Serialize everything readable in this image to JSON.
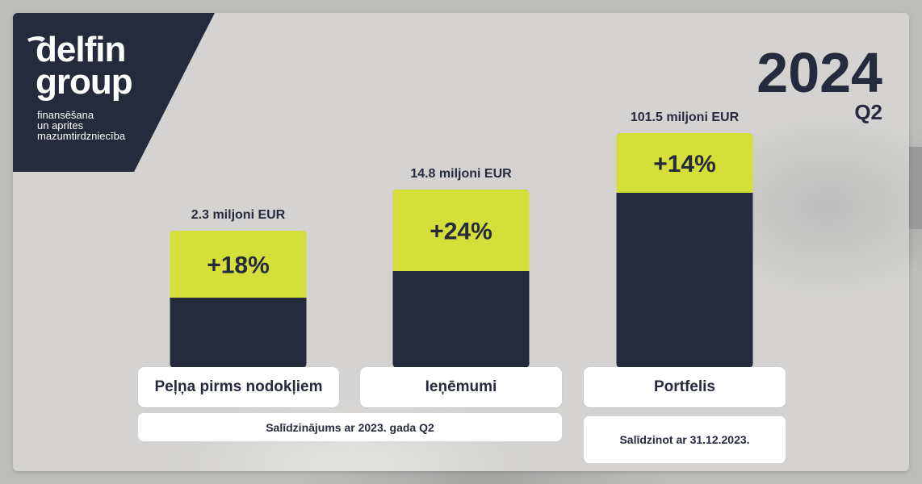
{
  "logo": {
    "word_top": "delfin",
    "word_bottom": "group",
    "tagline": [
      "finansēšana",
      "un aprites",
      "mazumtirdzniecība"
    ]
  },
  "period": {
    "year": "2024",
    "quarter": "Q2"
  },
  "colors": {
    "navy": "#252a3d",
    "lime": "#d4df3a",
    "white": "#ffffff"
  },
  "chart_data": {
    "type": "bar",
    "categories": [
      "Peļņa pirms nodokļiem",
      "Ieņēmumi",
      "Portfelis"
    ],
    "values": [
      2.3,
      14.8,
      101.5
    ],
    "value_labels": [
      "2.3 miljoni EUR",
      "14.8 miljoni EUR",
      "101.5 miljoni EUR"
    ],
    "change_labels": [
      "+18%",
      "+24%",
      "+14%"
    ],
    "ylabel": "",
    "xlabel": ""
  },
  "notes": {
    "comparison_q2": "Salīdzinājums ar 2023. gada Q2",
    "comparison_year_end": "Salīdzinot ar 31.12.2023."
  }
}
